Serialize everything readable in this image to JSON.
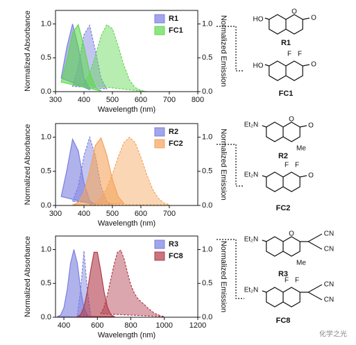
{
  "chart_data": [
    {
      "type": "area",
      "xlabel": "Wavelength (nm)",
      "ylabel": "Normalized Absorbance",
      "y2label": "Normalized Emission",
      "x": [
        300,
        320,
        340,
        360,
        380,
        400,
        420,
        440,
        460,
        480,
        500,
        520,
        540,
        560,
        580,
        600,
        620,
        640
      ],
      "series": [
        {
          "name": "R1",
          "color": "#7b7fe0",
          "absorbance": [
            null,
            0.2,
            0.66,
            1.0,
            0.66,
            0.2,
            0.03,
            null,
            null,
            null,
            null,
            null,
            null,
            null,
            null,
            null,
            null,
            null
          ],
          "emission": [
            null,
            null,
            null,
            0.08,
            0.37,
            0.84,
            0.98,
            0.61,
            0.2,
            0.04,
            null,
            null,
            null,
            null,
            null,
            null,
            null,
            null
          ]
        },
        {
          "name": "FC1",
          "color": "#5fd84f",
          "absorbance": [
            null,
            0.14,
            0.46,
            0.87,
            0.99,
            0.67,
            0.28,
            0.07,
            0.01,
            null,
            null,
            null,
            null,
            null,
            null,
            null,
            null,
            null
          ],
          "emission": [
            null,
            null,
            null,
            null,
            null,
            0.1,
            0.27,
            0.53,
            0.82,
            0.99,
            0.93,
            0.68,
            0.39,
            0.17,
            0.06,
            0.02,
            0.0,
            null
          ]
        }
      ],
      "xlim": [
        300,
        800
      ],
      "xticks": [
        300,
        400,
        500,
        600,
        700,
        800
      ],
      "ylim": [
        0,
        1.2
      ],
      "yticks": [
        {
          "value": 0,
          "label": "0.0"
        },
        {
          "value": 0.5,
          "label": "0.5"
        },
        {
          "value": 1,
          "label": "1.0"
        }
      ],
      "y2lim": [
        0,
        1.2
      ],
      "y2ticks": [
        {
          "value": 0,
          "label": "0.0"
        },
        {
          "value": 0.5,
          "label": "0.5"
        },
        {
          "value": 1,
          "label": "1.0"
        }
      ],
      "legend": "upper right"
    },
    {
      "type": "area",
      "xlabel": "Wavelength (nm)",
      "ylabel": "Normalized Absorbance",
      "y2label": "Normalized Emission",
      "x": [
        320,
        340,
        360,
        380,
        400,
        420,
        440,
        460,
        480,
        500,
        520,
        540,
        560,
        580,
        600,
        620,
        640,
        660,
        680,
        700
      ],
      "series": [
        {
          "name": "R2",
          "color": "#7b7fe0",
          "absorbance": [
            0.13,
            0.52,
            0.97,
            0.8,
            0.33,
            0.07,
            0.01,
            null,
            null,
            null,
            null,
            null,
            null,
            null,
            null,
            null,
            null,
            null,
            null,
            null
          ],
          "emission": [
            null,
            null,
            0.06,
            0.28,
            0.73,
            1.0,
            0.73,
            0.28,
            0.06,
            0.01,
            null,
            null,
            null,
            null,
            null,
            null,
            null,
            null,
            null,
            null
          ]
        },
        {
          "name": "FC2",
          "color": "#f5a35a",
          "absorbance": [
            null,
            null,
            0.01,
            0.04,
            0.19,
            0.5,
            0.88,
            0.99,
            0.74,
            0.38,
            0.13,
            0.03,
            null,
            null,
            null,
            null,
            null,
            null,
            null,
            null
          ],
          "emission": [
            null,
            null,
            null,
            null,
            null,
            0.01,
            0.04,
            0.11,
            0.25,
            0.46,
            0.71,
            0.92,
            1.0,
            0.92,
            0.71,
            0.46,
            0.25,
            0.11,
            0.04,
            0.01
          ]
        }
      ],
      "xlim": [
        300,
        800
      ],
      "xticks": [
        300,
        400,
        500,
        600,
        700
      ],
      "ylim": [
        0,
        1.2
      ],
      "yticks": [
        {
          "value": 0,
          "label": "0.0"
        },
        {
          "value": 0.5,
          "label": "0.5"
        },
        {
          "value": 1,
          "label": "1.0"
        }
      ],
      "y2lim": [
        0,
        1.2
      ],
      "y2ticks": [
        {
          "value": 0,
          "label": "0.0"
        },
        {
          "value": 0.5,
          "label": "0.5"
        },
        {
          "value": 1,
          "label": "1.0"
        }
      ],
      "legend": "upper right"
    },
    {
      "type": "area",
      "xlabel": "Wavelength (nm)",
      "ylabel": "Normalized Absorbance",
      "y2label": "Normalized Emission",
      "x": [
        360,
        380,
        400,
        420,
        440,
        460,
        480,
        500,
        520,
        540,
        560,
        580,
        600,
        620,
        640,
        660,
        680,
        700,
        720,
        740,
        760,
        780,
        800,
        820,
        840,
        860,
        880,
        900,
        920,
        940,
        960,
        980,
        1000
      ],
      "series": [
        {
          "name": "R3",
          "color": "#7b7fe0",
          "absorbance": [
            0.01,
            0.03,
            0.14,
            0.41,
            0.8,
            1.0,
            0.8,
            0.41,
            0.14,
            0.03,
            0.0,
            null,
            null,
            null,
            null,
            null,
            null,
            null,
            null,
            null,
            null,
            null,
            null,
            null,
            null,
            null,
            null,
            null,
            null,
            null,
            null,
            null,
            null
          ],
          "emission": [
            null,
            null,
            null,
            null,
            null,
            null,
            0.03,
            0.41,
            0.98,
            0.41,
            0.03,
            null,
            null,
            null,
            null,
            null,
            null,
            null,
            null,
            null,
            null,
            null,
            null,
            null,
            null,
            null,
            null,
            null,
            null,
            null,
            null,
            null,
            null
          ]
        },
        {
          "name": "FC8",
          "color": "#b03a4a",
          "absorbance": [
            null,
            null,
            null,
            null,
            null,
            null,
            0.01,
            0.04,
            0.15,
            0.38,
            0.69,
            0.96,
            0.96,
            0.69,
            0.38,
            0.15,
            0.04,
            0.01,
            null,
            null,
            null,
            null,
            null,
            null,
            null,
            null,
            null,
            null,
            null,
            null,
            null,
            null,
            null
          ],
          "emission": [
            null,
            null,
            null,
            null,
            null,
            null,
            null,
            null,
            null,
            null,
            null,
            null,
            null,
            0.05,
            0.15,
            0.33,
            0.56,
            0.78,
            0.96,
            0.99,
            0.86,
            0.66,
            0.48,
            0.36,
            0.28,
            0.23,
            0.19,
            0.14,
            0.1,
            0.06,
            0.04,
            0.02,
            0.01
          ]
        }
      ],
      "xlim": [
        350,
        1200
      ],
      "xticks": [
        400,
        600,
        800,
        1000,
        1200
      ],
      "ylim": [
        0,
        1.2
      ],
      "yticks": [
        {
          "value": 0,
          "label": "0.0"
        },
        {
          "value": 0.5,
          "label": "0.5"
        },
        {
          "value": 1,
          "label": "1.0"
        }
      ],
      "y2lim": [
        0,
        1.2
      ],
      "y2ticks": [
        {
          "value": 0,
          "label": "0.0"
        },
        {
          "value": 0.5,
          "label": "0.5"
        },
        {
          "value": 1,
          "label": "1.0"
        }
      ],
      "legend": "upper right"
    }
  ],
  "structures": [
    {
      "label": "R1",
      "atoms": [
        "HO",
        "O",
        "O"
      ]
    },
    {
      "label": "FC1",
      "atoms": [
        "HO",
        "F",
        "F",
        "O"
      ]
    },
    {
      "label": "R2",
      "atoms": [
        "Et₂N",
        "O",
        "O",
        "Me"
      ]
    },
    {
      "label": "FC2",
      "atoms": [
        "Et₂N",
        "F",
        "F",
        "O"
      ]
    },
    {
      "label": "R3",
      "atoms": [
        "Et₂N",
        "O",
        "CN",
        "CN",
        "Me"
      ]
    },
    {
      "label": "FC8",
      "atoms": [
        "Et₂N",
        "F",
        "F",
        "CN",
        "CN"
      ]
    }
  ],
  "watermark": "化学之光"
}
